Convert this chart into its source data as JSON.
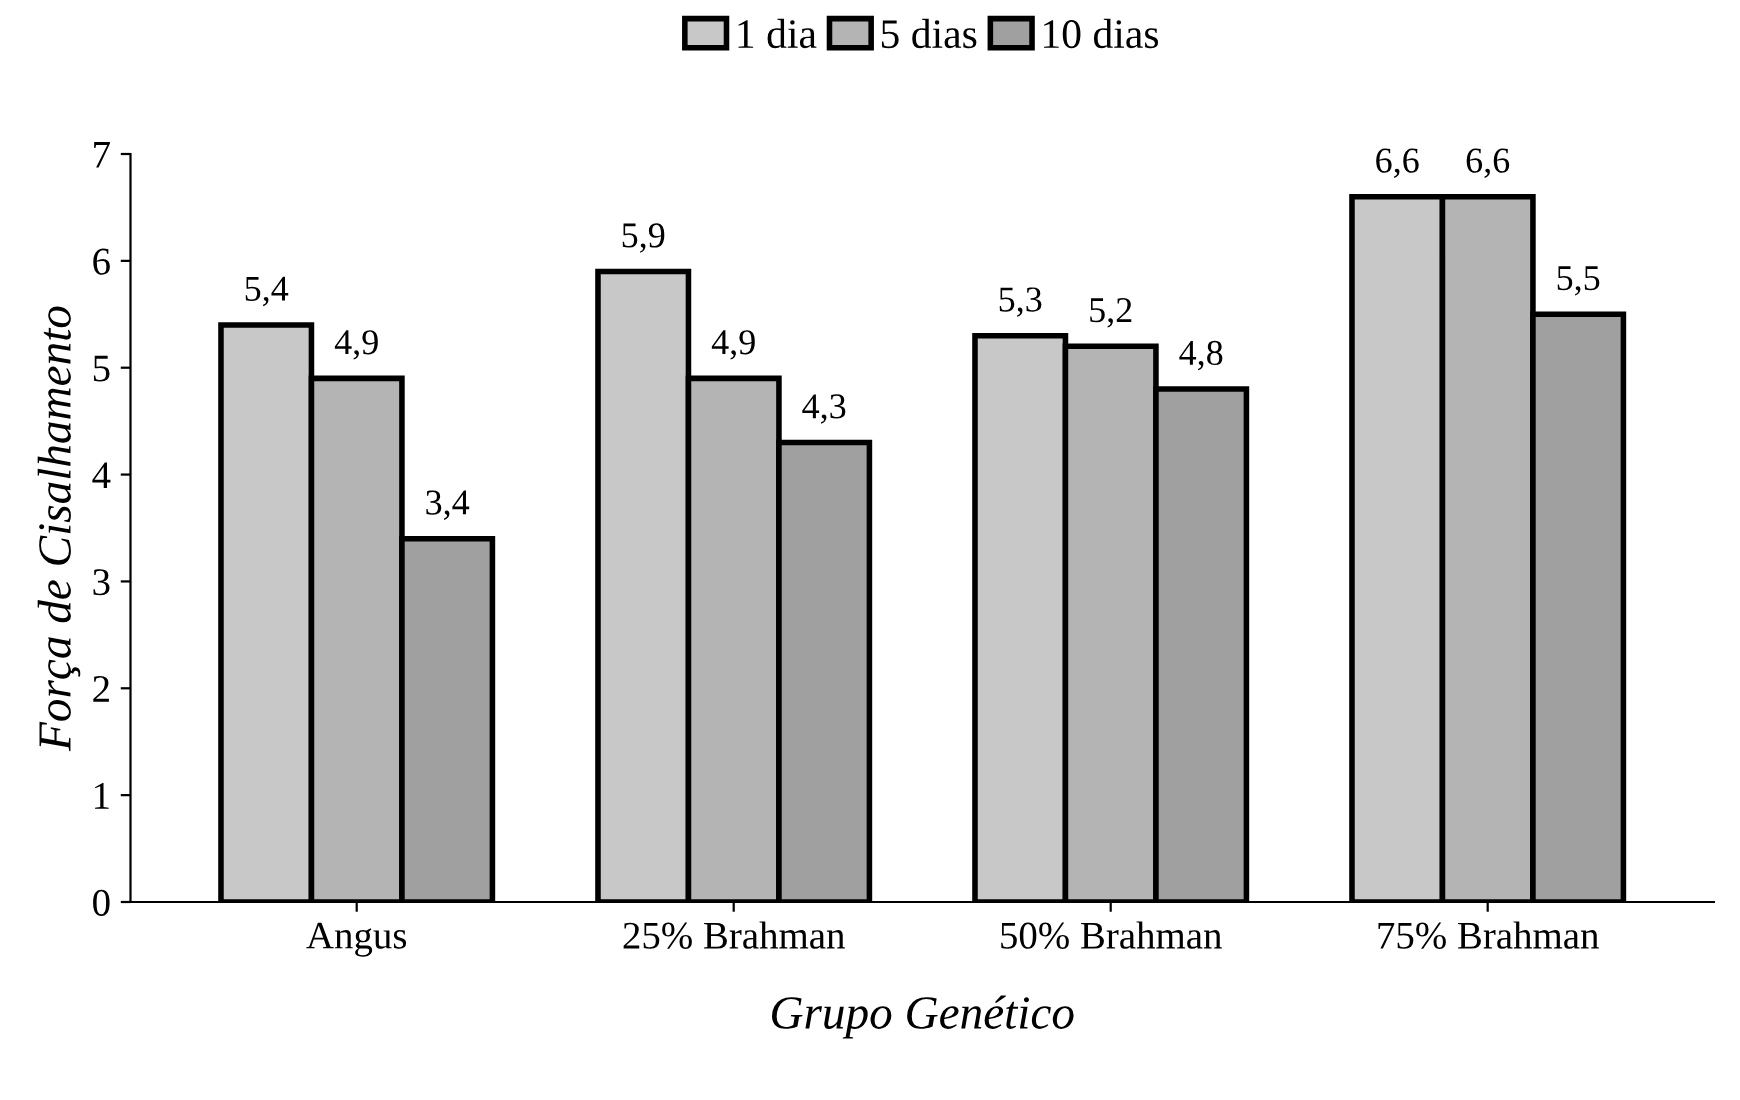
{
  "chart_data": {
    "type": "bar",
    "xlabel": "Grupo Genético",
    "ylabel": "Força de Cisalhamento",
    "categories": [
      "Angus",
      "25% Brahman",
      "50% Brahman",
      "75% Brahman"
    ],
    "series": [
      {
        "name": "1 dia",
        "color": "#c8c8c8",
        "values": [
          5.4,
          5.9,
          5.3,
          6.6
        ],
        "value_labels": [
          "5,4",
          "5,9",
          "5,3",
          "6,6"
        ]
      },
      {
        "name": "5 dias",
        "color": "#b4b4b4",
        "values": [
          4.9,
          4.9,
          5.2,
          6.6
        ],
        "value_labels": [
          "4,9",
          "4,9",
          "5,2",
          "6,6"
        ]
      },
      {
        "name": "10 dias",
        "color": "#a0a0a0",
        "values": [
          3.4,
          4.3,
          4.8,
          5.5
        ],
        "value_labels": [
          "3,4",
          "4,3",
          "4,8",
          "5,5"
        ]
      }
    ],
    "ylim": [
      0,
      7
    ],
    "yticks": [
      0,
      1,
      2,
      3,
      4,
      5,
      6,
      7
    ],
    "grid": false,
    "legend": "top"
  }
}
